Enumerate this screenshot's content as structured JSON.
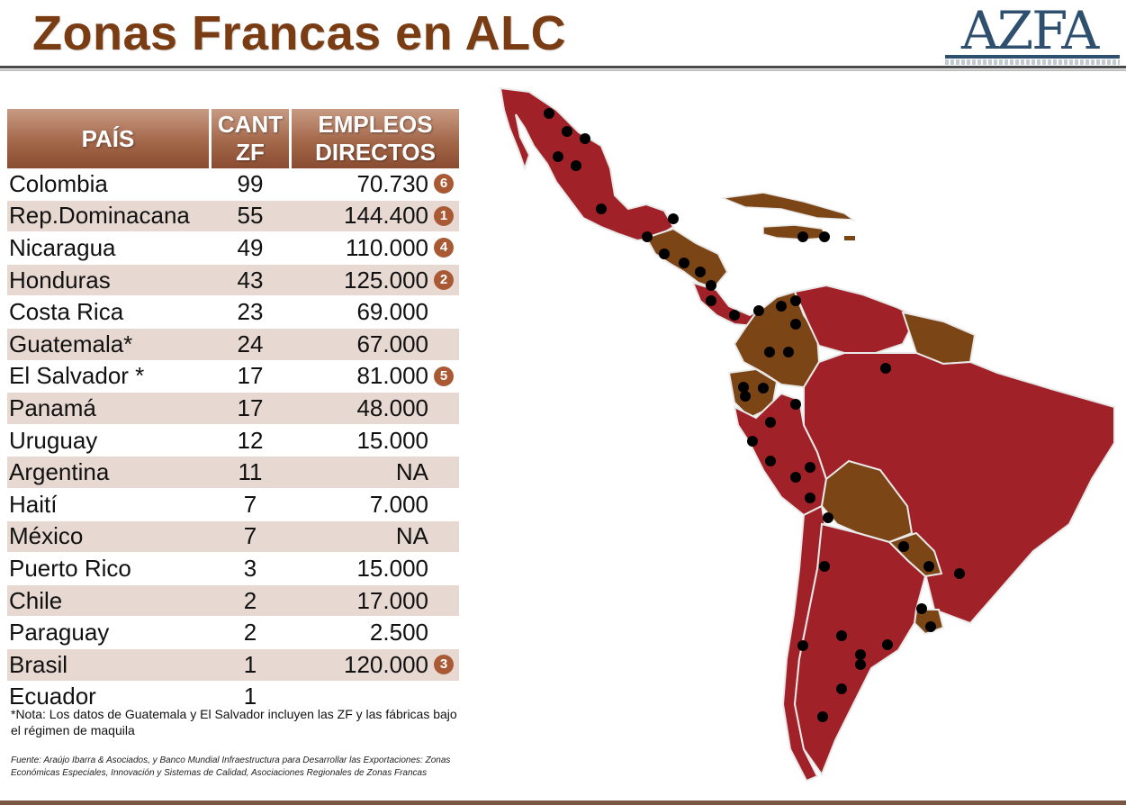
{
  "page": {
    "title": "Zonas Francas en ALC",
    "logo_text": "AZFA"
  },
  "table": {
    "headers": {
      "country": "PAÍS",
      "count_line1": "CANT",
      "count_line2": "ZF",
      "jobs_line1": "EMPLEOS",
      "jobs_line2": "DIRECTOS"
    },
    "rows": [
      {
        "country": "Colombia",
        "zf": "99",
        "jobs": "70.730",
        "rank": "6"
      },
      {
        "country": "Rep.Dominacana",
        "zf": "55",
        "jobs": "144.400",
        "rank": "1"
      },
      {
        "country": "Nicaragua",
        "zf": "49",
        "jobs": "110.000",
        "rank": "4"
      },
      {
        "country": "Honduras",
        "zf": "43",
        "jobs": "125.000",
        "rank": "2"
      },
      {
        "country": "Costa Rica",
        "zf": "23",
        "jobs": "69.000",
        "rank": ""
      },
      {
        "country": "Guatemala*",
        "zf": "24",
        "jobs": "67.000",
        "rank": ""
      },
      {
        "country": "El Salvador *",
        "zf": "17",
        "jobs": "81.000",
        "rank": "5"
      },
      {
        "country": "Panamá",
        "zf": "17",
        "jobs": "48.000",
        "rank": ""
      },
      {
        "country": "Uruguay",
        "zf": "12",
        "jobs": "15.000",
        "rank": ""
      },
      {
        "country": "Argentina",
        "zf": "11",
        "jobs": "NA",
        "rank": ""
      },
      {
        "country": "Haití",
        "zf": "7",
        "jobs": "7.000",
        "rank": ""
      },
      {
        "country": "México",
        "zf": "7",
        "jobs": "NA",
        "rank": ""
      },
      {
        "country": "Puerto Rico",
        "zf": "3",
        "jobs": "15.000",
        "rank": ""
      },
      {
        "country": "Chile",
        "zf": "2",
        "jobs": "17.000",
        "rank": ""
      },
      {
        "country": "Paraguay",
        "zf": "2",
        "jobs": "2.500",
        "rank": ""
      },
      {
        "country": "Brasil",
        "zf": "1",
        "jobs": "120.000",
        "rank": "3"
      },
      {
        "country": "Ecuador",
        "zf": "1",
        "jobs": "",
        "rank": ""
      }
    ]
  },
  "note": "*Nota: Los datos de Guatemala y El Salvador incluyen las ZF y las fábricas bajo el régimen de maquila",
  "source": "Fuente: Araújo Ibarra & Asociados, y Banco Mundial Infraestructura para Desarrollar las Exportaciones: Zonas Económicas Especiales, Innovación y Sistemas de Calidad, Asociaciones Regionales de Zonas Francas",
  "colors": {
    "title": "#7a3c12",
    "header": "#a3674a",
    "stripe": "#e7d9d2",
    "map_red": "#a02228",
    "map_brown": "#7b4516",
    "dot": "#000000"
  }
}
